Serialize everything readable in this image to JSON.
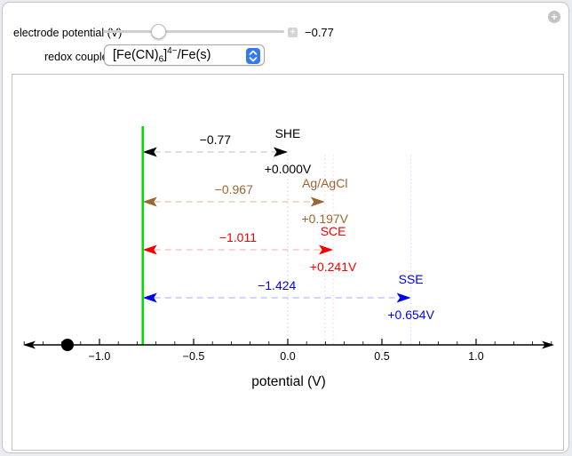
{
  "page": {
    "background": "#e9edf2"
  },
  "panel": {
    "background": "#ffffff",
    "border_color": "#c4c4c4"
  },
  "icons": {
    "expander_plus": "+",
    "stepper_plus": "+"
  },
  "controls": {
    "potential": {
      "label": "electrode potential (V)",
      "value": "−0.77",
      "fraction": 0.3075
    },
    "redox": {
      "label": "redox couple",
      "formula": {
        "p1": "[Fe(CN)",
        "sub": "6",
        "p2": "]",
        "sup": "4−",
        "p3": "/Fe(s)"
      },
      "accent_color": "#3478f6"
    }
  },
  "chart": {
    "type": "reference-electrode-potential-diagram",
    "xlabel": "potential (V)",
    "x_axis": {
      "min": -1.4,
      "max": 1.4,
      "major_values": [
        -1.0,
        -0.5,
        0.0,
        0.5,
        1.0
      ],
      "major_labels": [
        "−1.0",
        "−0.5",
        "0.0",
        "0.5",
        "1.0"
      ],
      "minor_step": 0.1
    },
    "electrode_potential_vs_she": -0.77,
    "marker_line_color": "#00dd00",
    "locator": {
      "value": -1.17,
      "color": "#000000"
    },
    "references": [
      {
        "name": "SHE",
        "e_vs_she": 0.0,
        "e_label": "+0.000V",
        "delta_label": "−0.77",
        "color": "#000000",
        "dash_color": "#c9c9c9",
        "dot_color": "#cccccc"
      },
      {
        "name": "Ag/AgCl",
        "e_vs_she": 0.197,
        "e_label": "+0.197V",
        "delta_label": "−0.967",
        "color": "#996633",
        "dash_color": "#ddc6ab",
        "dot_color": "#e8d8c4"
      },
      {
        "name": "SCE",
        "e_vs_she": 0.241,
        "e_label": "+0.241V",
        "delta_label": "−1.011",
        "color": "#f20000",
        "dash_color": "#ffb9b9",
        "dot_color": "#ffd2d2"
      },
      {
        "name": "SSE",
        "e_vs_she": 0.654,
        "e_label": "+0.654V",
        "delta_label": "−1.424",
        "color": "#0000f2",
        "dash_color": "#b9b9ff",
        "dot_color": "#d2d2ff"
      }
    ]
  }
}
